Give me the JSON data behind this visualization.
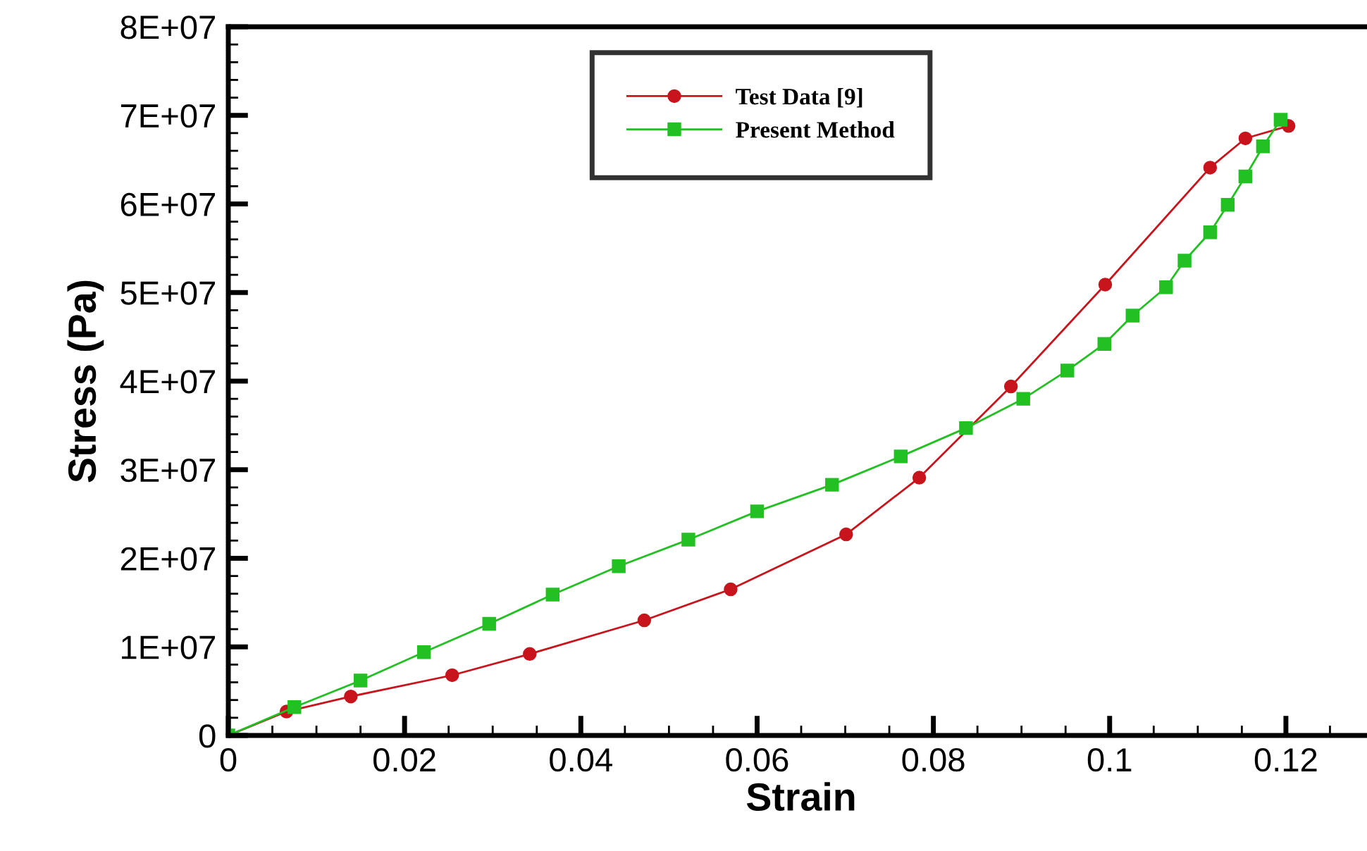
{
  "chart_data": {
    "type": "line",
    "xlabel": "Strain",
    "ylabel": "Stress (Pa)",
    "xlim": [
      0,
      0.13
    ],
    "xticks": [
      0,
      0.02,
      0.04,
      0.06,
      0.08,
      0.1,
      0.12
    ],
    "ylim": [
      0,
      80000000
    ],
    "yticks": [
      0,
      {
        "value": 10000000,
        "label": "1E+07"
      },
      {
        "value": 20000000,
        "label": "2E+07"
      },
      {
        "value": 30000000,
        "label": "3E+07"
      },
      {
        "value": 40000000,
        "label": "4E+07"
      },
      {
        "value": 50000000,
        "label": "5E+07"
      },
      {
        "value": 60000000,
        "label": "6E+07"
      },
      {
        "value": 70000000,
        "label": "7E+07"
      },
      {
        "value": 80000000,
        "label": "8E+07"
      }
    ],
    "grid": false,
    "legend": "top",
    "series": [
      {
        "name": "Test Data [9]",
        "color": "#c8141c",
        "marker": "circle",
        "x": [
          0,
          0.0066,
          0.0139,
          0.0254,
          0.0342,
          0.0472,
          0.057,
          0.0701,
          0.0784,
          0.0888,
          0.0995,
          0.1114,
          0.1154,
          0.1203
        ],
        "values": [
          0,
          2700000,
          4400000,
          6800000,
          9200000,
          13000000,
          16500000,
          22700000,
          29100000,
          39400000,
          50900000,
          64100000,
          67400000,
          68800000
        ]
      },
      {
        "name": "Present Method",
        "color": "#22c022",
        "marker": "square",
        "x": [
          0,
          0.0075,
          0.015,
          0.0222,
          0.0296,
          0.0368,
          0.0443,
          0.0522,
          0.06,
          0.0685,
          0.0763,
          0.0837,
          0.0902,
          0.0952,
          0.0994,
          0.1026,
          0.1064,
          0.1085,
          0.1114,
          0.1134,
          0.1154,
          0.1174,
          0.1194
        ],
        "values": [
          0,
          3200000,
          6200000,
          9400000,
          12600000,
          15900000,
          19100000,
          22100000,
          25300000,
          28300000,
          31500000,
          34700000,
          38000000,
          41200000,
          44200000,
          47400000,
          50600000,
          53600000,
          56800000,
          59900000,
          63100000,
          66500000,
          69500000
        ]
      }
    ]
  }
}
